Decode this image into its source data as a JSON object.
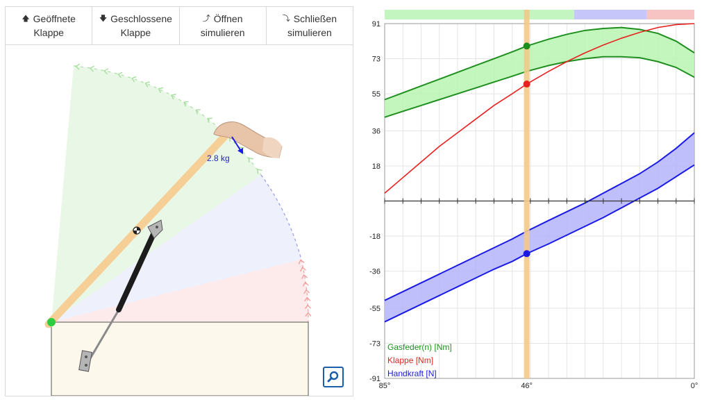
{
  "toolbar": {
    "open_flap": {
      "line1": "Geöffnete",
      "line2": "Klappe",
      "icon": "arrow-up-icon"
    },
    "closed_flap": {
      "line1": "Geschlossene",
      "line2": "Klappe",
      "icon": "arrow-down-icon"
    },
    "simulate_open": {
      "line1": "Öffnen",
      "line2": "simulieren",
      "icon": "curved-arrow-up-icon"
    },
    "simulate_close": {
      "line1": "Schließen",
      "line2": "simulieren",
      "icon": "curved-arrow-down-icon"
    }
  },
  "simulation": {
    "weight_label": "2.8 kg",
    "flap_angle_deg": 46,
    "zoom_icon": "magnifier-icon",
    "colors": {
      "open_zone": "#e9f7e6",
      "mid_zone": "#eef0fb",
      "closed_zone": "#fcebea",
      "flap": "#f5cf96",
      "box": "#fdf8ec"
    }
  },
  "chart_data": {
    "type": "line",
    "x": [
      85,
      80,
      75,
      70,
      65,
      60,
      55,
      50,
      46,
      40,
      35,
      30,
      25,
      20,
      15,
      10,
      5,
      0
    ],
    "xlim": [
      85,
      0
    ],
    "x_ticks": [
      "85°",
      "46°",
      "0°"
    ],
    "y_ticks": [
      91,
      73,
      55,
      36,
      18,
      -18,
      -36,
      -55,
      -73,
      -91
    ],
    "ylim": [
      -91,
      91
    ],
    "grid": true,
    "legend_position": "bottom-left",
    "current_x_label": "46°",
    "current_x": 46,
    "bands": [
      {
        "name": "Gasfeder(n) [Nm]",
        "color": "#1e8f1e",
        "fill": "#b8f5b0",
        "upper": [
          52,
          55.5,
          59,
          62.5,
          66,
          69.5,
          73,
          76.5,
          79.5,
          83,
          85.5,
          87.5,
          88.5,
          89,
          88,
          86,
          82,
          76
        ],
        "lower": [
          43,
          46,
          49,
          52,
          55,
          58,
          61,
          64,
          66.5,
          69.5,
          71.5,
          73,
          74,
          74,
          73.5,
          71.5,
          68.5,
          63.5
        ]
      },
      {
        "name": "Handkraft [N]",
        "color": "#1a1ae6",
        "fill": "#b4b4fa",
        "upper": [
          -51,
          -46.5,
          -42,
          -37.5,
          -33,
          -28.5,
          -24,
          -19.5,
          -15.5,
          -10,
          -5.5,
          -1,
          4,
          9,
          14,
          20,
          27,
          35
        ],
        "lower": [
          -62,
          -57.5,
          -53,
          -48.5,
          -44,
          -39.5,
          -35,
          -31,
          -27,
          -22,
          -17.5,
          -13,
          -8.5,
          -3.5,
          1.5,
          6.5,
          12.5,
          18.5
        ]
      }
    ],
    "series": [
      {
        "name": "Klappe [Nm]",
        "color": "#e82020",
        "values": [
          4,
          12,
          20,
          28,
          35,
          42,
          49,
          55,
          60,
          66.5,
          71.5,
          76,
          80,
          83.5,
          86.5,
          89,
          90.5,
          91
        ]
      }
    ],
    "marker_values": {
      "gas_upper": 79.5,
      "klappe": 60,
      "hand_lower": -27
    },
    "zones": [
      {
        "from": 85,
        "to": 33,
        "color": "#c3f5c0"
      },
      {
        "from": 33,
        "to": 13,
        "color": "#c6c6fa"
      },
      {
        "from": 13,
        "to": 0,
        "color": "#f7c3c3"
      }
    ]
  }
}
